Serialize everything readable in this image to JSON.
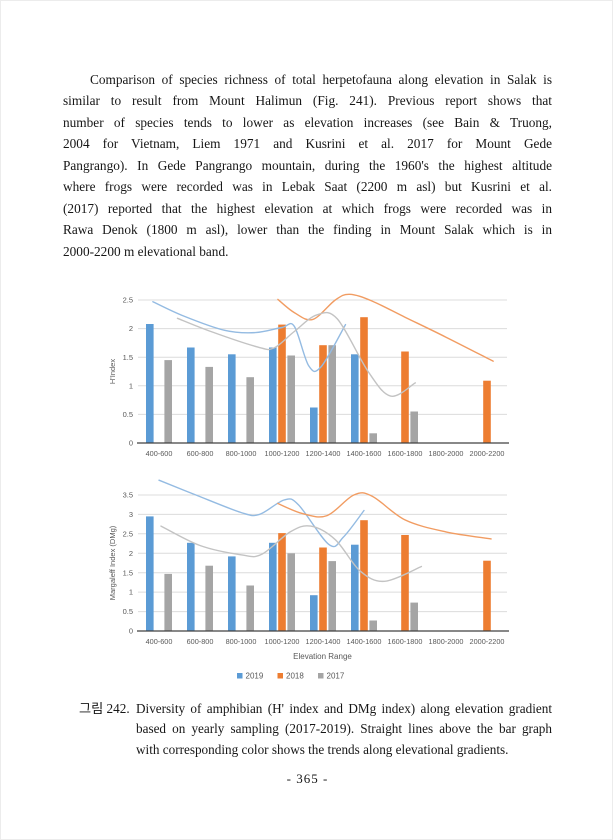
{
  "paragraph": {
    "lines": [
      "Comparison of species richness of total herpetofauna along elevation in Salak is",
      "similar to result from Mount Halimun (Fig. 241). Previous report shows that",
      "number of species tends to lower as elevation increases (see Bain & Truong,",
      "2004 for Vietnam, Liem 1971 and Kusrini et al. 2017 for Mount Gede",
      "Pangrango). In Gede Pangrango mountain, during the 1960's the highest altitude",
      "where frogs were recorded was in Lebak Saat (2200 m asl) but Kusrini et al.",
      "(2017) reported that the highest elevation at which frogs were recorded was in",
      "Rawa Denok (1800 m asl), lower than the finding in Mount Salak which is in",
      "2000-2200 m elevational band."
    ]
  },
  "caption": {
    "label": "그림 242.",
    "lines": [
      "Diversity of amphibian (H' index and DMg index) along elevation gradient",
      "based on yearly sampling (2017-2019). Straight lines above the bar graph",
      "with corresponding color shows the trends along elevational gradients."
    ]
  },
  "page_number": "- 365 -",
  "colors": {
    "bar_2019": "#5b9bd5",
    "bar_2018": "#ed7d31",
    "bar_2017": "#a5a5a5",
    "trend_2019": "#94bbe2",
    "trend_2018": "#f19c62",
    "trend_2017": "#c3c3c3",
    "gridline": "#dcdcdc",
    "axis_line": "#404040",
    "axis_text": "#595959"
  },
  "chart_data": [
    {
      "type": "bar",
      "title": "",
      "xlabel": "",
      "ylabel": "H'Index",
      "ylim": [
        0,
        2.5
      ],
      "yticks": [
        "0",
        "0.5",
        "1",
        "1.5",
        "2",
        "2.5"
      ],
      "grid": true,
      "legend_visible": false,
      "categories": [
        "400-600",
        "600-800",
        "800-1000",
        "1000-1200",
        "1200-1400",
        "1400-1600",
        "1600-1800",
        "1800-2000",
        "2000-2200"
      ],
      "series": [
        {
          "name": "2019",
          "color": "#5b9bd5",
          "values": [
            2.08,
            1.67,
            1.55,
            1.67,
            0.62,
            1.55,
            null,
            null,
            null
          ]
        },
        {
          "name": "2018",
          "color": "#ed7d31",
          "values": [
            null,
            null,
            null,
            2.07,
            1.71,
            2.2,
            1.6,
            null,
            1.09
          ]
        },
        {
          "name": "2017",
          "color": "#a5a5a5",
          "values": [
            1.45,
            1.33,
            1.15,
            1.53,
            1.71,
            0.17,
            0.55,
            null,
            null
          ]
        }
      ],
      "trend_lines": [
        {
          "name": "2019 trend",
          "color": "#94bbe2",
          "points_cat_value": [
            [
              -0.15,
              2.47
            ],
            [
              0.6,
              2.22
            ],
            [
              1.6,
              1.97
            ],
            [
              2.35,
              1.93
            ],
            [
              3.0,
              2.02
            ],
            [
              3.3,
              2.04
            ],
            [
              3.65,
              1.35
            ],
            [
              3.95,
              1.33
            ],
            [
              4.55,
              2.07
            ]
          ]
        },
        {
          "name": "2018 trend",
          "color": "#f19c62",
          "points_cat_value": [
            [
              2.9,
              2.51
            ],
            [
              3.3,
              2.28
            ],
            [
              3.75,
              2.16
            ],
            [
              4.3,
              2.5
            ],
            [
              4.65,
              2.6
            ],
            [
              5.2,
              2.48
            ],
            [
              6.0,
              2.2
            ],
            [
              7.0,
              1.85
            ],
            [
              8.15,
              1.43
            ]
          ]
        },
        {
          "name": "2017 trend",
          "color": "#c3c3c3",
          "points_cat_value": [
            [
              0.45,
              2.18
            ],
            [
              1.3,
              1.94
            ],
            [
              2.4,
              1.68
            ],
            [
              2.8,
              1.66
            ],
            [
              3.3,
              1.95
            ],
            [
              3.85,
              2.24
            ],
            [
              4.35,
              2.17
            ],
            [
              5.1,
              1.25
            ],
            [
              5.65,
              0.82
            ],
            [
              6.25,
              1.05
            ]
          ]
        }
      ]
    },
    {
      "type": "bar",
      "title": "",
      "xlabel": "Elevation Range",
      "ylabel": "Margaleff Index (DMg)",
      "ylim": [
        0,
        3.5
      ],
      "yticks": [
        "0",
        "0.5",
        "1",
        "1.5",
        "2",
        "2.5",
        "3",
        "3.5"
      ],
      "grid": true,
      "legend_visible": true,
      "legend": [
        "2019",
        "2018",
        "2017"
      ],
      "categories": [
        "400-600",
        "600-800",
        "800-1000",
        "1000-1200",
        "1200-1400",
        "1400-1600",
        "1600-1800",
        "1800-2000",
        "2000-2200"
      ],
      "series": [
        {
          "name": "2019",
          "color": "#5b9bd5",
          "values": [
            2.95,
            2.27,
            1.92,
            2.27,
            0.92,
            2.22,
            null,
            null,
            null
          ]
        },
        {
          "name": "2018",
          "color": "#ed7d31",
          "values": [
            null,
            null,
            null,
            2.52,
            2.15,
            2.85,
            2.47,
            null,
            1.81
          ]
        },
        {
          "name": "2017",
          "color": "#a5a5a5",
          "values": [
            1.47,
            1.68,
            1.17,
            2.0,
            1.8,
            0.27,
            0.73,
            null,
            null
          ]
        }
      ],
      "trend_lines": [
        {
          "name": "2019 trend",
          "color": "#94bbe2",
          "points_cat_value": [
            [
              0.0,
              3.88
            ],
            [
              0.9,
              3.5
            ],
            [
              2.0,
              3.05
            ],
            [
              2.45,
              3.0
            ],
            [
              3.05,
              3.37
            ],
            [
              3.4,
              3.25
            ],
            [
              4.15,
              2.22
            ],
            [
              4.5,
              2.42
            ],
            [
              5.0,
              3.1
            ]
          ]
        },
        {
          "name": "2018 trend",
          "color": "#f19c62",
          "points_cat_value": [
            [
              2.9,
              3.28
            ],
            [
              3.5,
              3.02
            ],
            [
              4.1,
              2.97
            ],
            [
              4.75,
              3.5
            ],
            [
              5.2,
              3.47
            ],
            [
              6.0,
              2.86
            ],
            [
              7.0,
              2.55
            ],
            [
              8.1,
              2.37
            ]
          ]
        },
        {
          "name": "2017 trend",
          "color": "#c3c3c3",
          "points_cat_value": [
            [
              0.05,
              2.7
            ],
            [
              1.0,
              2.2
            ],
            [
              2.0,
              1.96
            ],
            [
              2.5,
              1.97
            ],
            [
              3.2,
              2.55
            ],
            [
              3.7,
              2.7
            ],
            [
              4.3,
              2.35
            ],
            [
              4.9,
              1.55
            ],
            [
              5.5,
              1.28
            ],
            [
              6.4,
              1.66
            ]
          ]
        }
      ]
    }
  ]
}
